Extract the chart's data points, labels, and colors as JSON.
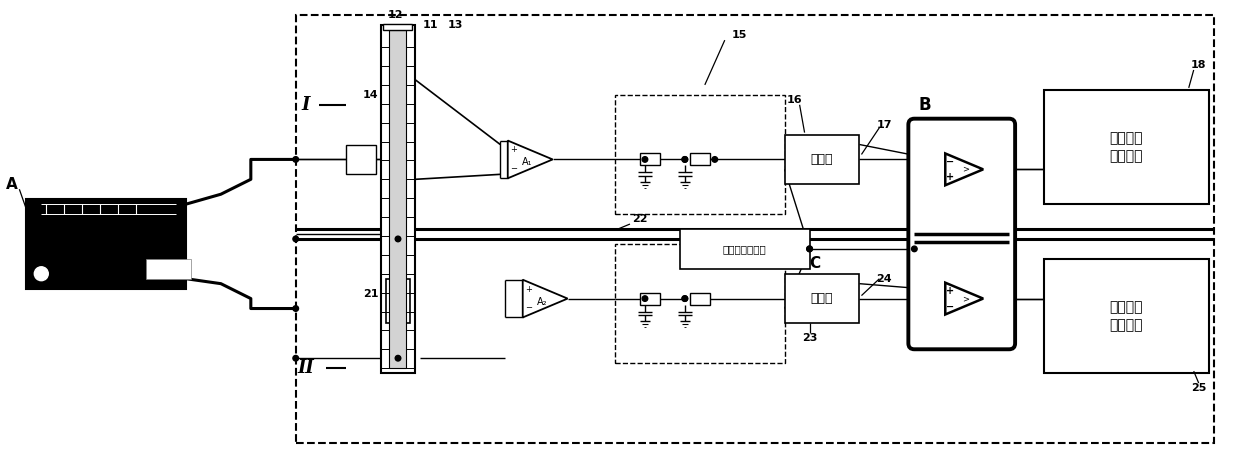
{
  "bg_color": "#ffffff",
  "figsize": [
    12.4,
    4.59
  ],
  "dpi": 100,
  "text_adder": "加法器",
  "text_ref": "参考电压发生器",
  "text_digital": "数字信号\n采集电路",
  "amp1_label": "A₁",
  "amp2_label": "A₂",
  "label_A": "A",
  "label_B": "B",
  "label_C": "C",
  "label_I": "I",
  "label_II": "II"
}
